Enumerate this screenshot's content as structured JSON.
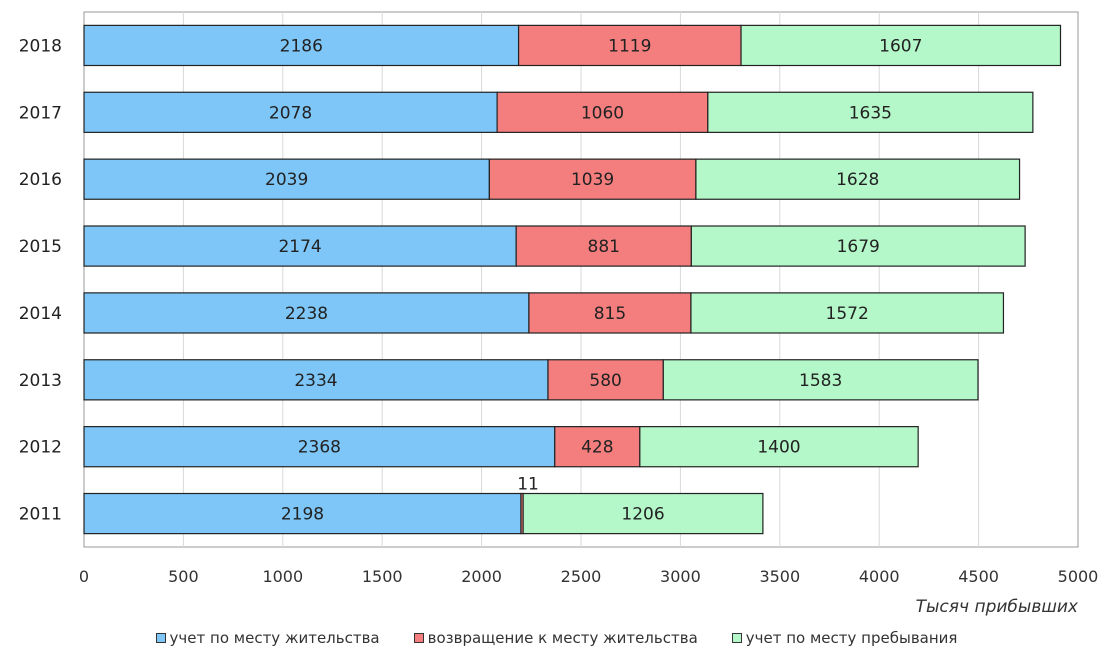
{
  "chart_data": {
    "type": "bar",
    "orientation": "horizontal",
    "stacked": true,
    "categories": [
      "2018",
      "2017",
      "2016",
      "2015",
      "2014",
      "2013",
      "2012",
      "2011"
    ],
    "series": [
      {
        "name": "учет по месту жительства",
        "color": "#7dc6f7",
        "values": [
          2186,
          2078,
          2039,
          2174,
          2238,
          2334,
          2368,
          2198
        ]
      },
      {
        "name": "возвращение к месту жительства",
        "color": "#f47e7e",
        "values": [
          1119,
          1060,
          1039,
          881,
          815,
          580,
          428,
          11
        ]
      },
      {
        "name": "учет по месту пребывания",
        "color": "#b4f7c9",
        "values": [
          1607,
          1635,
          1628,
          1679,
          1572,
          1583,
          1400,
          1206
        ]
      }
    ],
    "xticks": [
      "0",
      "500",
      "1000",
      "1500",
      "2000",
      "2500",
      "3000",
      "3500",
      "4000",
      "4500",
      "5000"
    ],
    "xlim": [
      0,
      5000
    ],
    "xlabel": "Тысяч прибывших",
    "ylabel": "",
    "grid": true,
    "legend_position": "bottom"
  }
}
